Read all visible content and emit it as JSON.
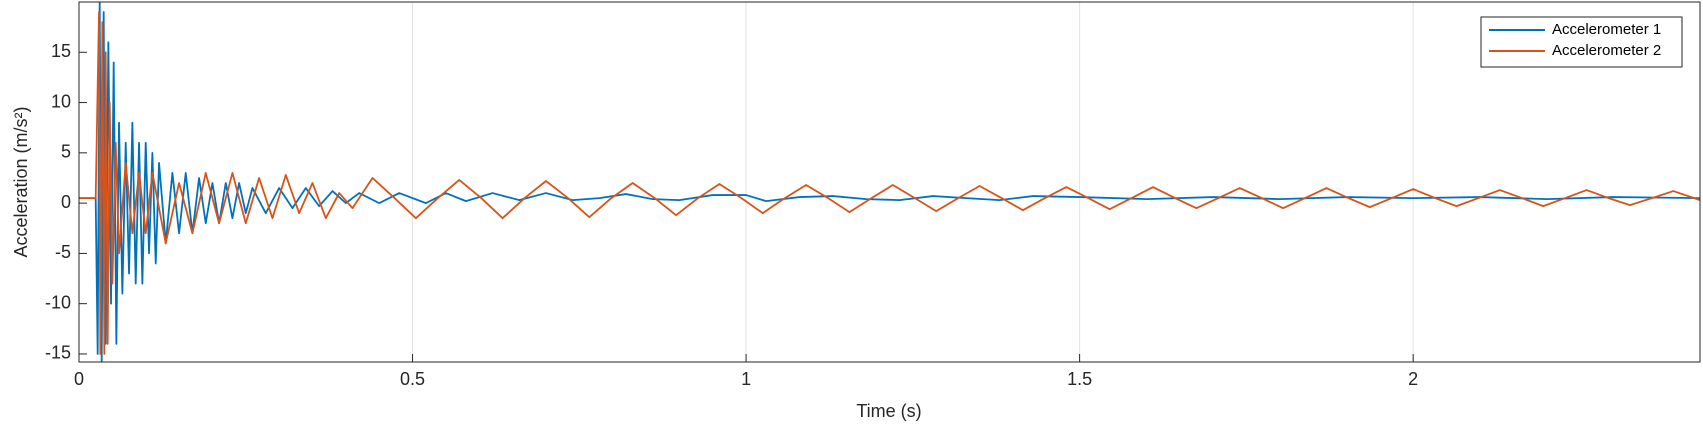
{
  "chart_data": {
    "type": "line",
    "x_label": "Time (s)",
    "y_label": "Acceleration (m/s²)",
    "xlim": [
      0,
      2.43
    ],
    "ylim": [
      -15.8,
      20
    ],
    "xticks": [
      0,
      0.5,
      1,
      1.5,
      2
    ],
    "yticks": [
      -15,
      -10,
      -5,
      0,
      5,
      10,
      15
    ],
    "grid": "x",
    "legend": "upper-right",
    "series": [
      {
        "name": "Accelerometer 1",
        "color": "#0072bd",
        "x": [
          0,
          0.025,
          0.028,
          0.031,
          0.034,
          0.037,
          0.04,
          0.044,
          0.048,
          0.052,
          0.056,
          0.06,
          0.065,
          0.07,
          0.075,
          0.08,
          0.085,
          0.09,
          0.095,
          0.1,
          0.105,
          0.11,
          0.115,
          0.12,
          0.13,
          0.14,
          0.15,
          0.16,
          0.17,
          0.18,
          0.19,
          0.2,
          0.21,
          0.22,
          0.23,
          0.24,
          0.25,
          0.26,
          0.28,
          0.3,
          0.32,
          0.34,
          0.36,
          0.38,
          0.4,
          0.42,
          0.45,
          0.48,
          0.52,
          0.55,
          0.58,
          0.62,
          0.66,
          0.7,
          0.74,
          0.78,
          0.82,
          0.86,
          0.9,
          0.95,
          1,
          1.03,
          1.08,
          1.13,
          1.18,
          1.23,
          1.28,
          1.33,
          1.38,
          1.43,
          1.5,
          1.6,
          1.7,
          1.8,
          1.9,
          2,
          2.1,
          2.2,
          2.3,
          2.43
        ],
        "values": [
          0.5,
          0.5,
          -15,
          20,
          -16,
          19,
          -14,
          16,
          -10,
          14,
          -14,
          8,
          -9,
          6,
          -7,
          8,
          -8,
          6,
          -8,
          6,
          -5,
          5,
          -6,
          4,
          -4,
          3,
          -3,
          3,
          -3,
          2.5,
          -2,
          2,
          -2,
          2,
          -1.5,
          2,
          -1,
          1.5,
          -1,
          1.5,
          -0.5,
          1.5,
          -0.3,
          1.2,
          0,
          1,
          0,
          1,
          0,
          1,
          0.2,
          1,
          0.3,
          1,
          0.3,
          0.5,
          0.9,
          0.4,
          0.3,
          0.8,
          0.8,
          0.2,
          0.6,
          0.7,
          0.4,
          0.3,
          0.7,
          0.5,
          0.3,
          0.7,
          0.6,
          0.4,
          0.6,
          0.4,
          0.6,
          0.5,
          0.6,
          0.4,
          0.6,
          0.5
        ]
      },
      {
        "name": "Accelerometer 2",
        "color": "#d95319",
        "x": [
          0,
          0.025,
          0.03,
          0.032,
          0.035,
          0.038,
          0.04,
          0.043,
          0.046,
          0.05,
          0.055,
          0.06,
          0.07,
          0.08,
          0.09,
          0.1,
          0.11,
          0.13,
          0.15,
          0.17,
          0.19,
          0.21,
          0.23,
          0.25,
          0.27,
          0.29,
          0.31,
          0.33,
          0.35,
          0.37,
          0.39,
          0.41,
          0.44,
          0.473,
          0.505,
          0.538,
          0.57,
          0.603,
          0.635,
          0.668,
          0.7,
          0.733,
          0.765,
          0.798,
          0.83,
          0.863,
          0.895,
          0.928,
          0.96,
          0.993,
          1.025,
          1.058,
          1.09,
          1.123,
          1.155,
          1.188,
          1.22,
          1.253,
          1.285,
          1.318,
          1.35,
          1.383,
          1.415,
          1.448,
          1.48,
          1.513,
          1.545,
          1.578,
          1.61,
          1.643,
          1.675,
          1.708,
          1.74,
          1.773,
          1.805,
          1.838,
          1.87,
          1.903,
          1.935,
          1.968,
          2,
          2.033,
          2.065,
          2.098,
          2.13,
          2.163,
          2.195,
          2.228,
          2.26,
          2.293,
          2.325,
          2.358,
          2.39,
          2.43
        ],
        "values": [
          0.5,
          0.5,
          19,
          -15,
          18,
          -15,
          15,
          -14,
          10,
          -8,
          6,
          -5,
          4,
          -3,
          3,
          -3,
          3,
          -4,
          2,
          -3,
          3,
          -2,
          3,
          -2,
          2.5,
          -1.5,
          2.8,
          -1,
          2,
          -1.5,
          1,
          -0.5,
          2.5,
          0.5,
          -1.5,
          0.5,
          2.3,
          0.5,
          -1.5,
          0.5,
          2.2,
          0.5,
          -1.4,
          0.5,
          2.0,
          0.5,
          -1.2,
          0.5,
          1.9,
          0.5,
          -1.0,
          0.5,
          1.8,
          0.5,
          -0.9,
          0.5,
          1.8,
          0.5,
          -0.8,
          0.5,
          1.7,
          0.5,
          -0.7,
          0.5,
          1.6,
          0.5,
          -0.6,
          0.5,
          1.6,
          0.5,
          -0.5,
          0.5,
          1.5,
          0.5,
          -0.5,
          0.5,
          1.5,
          0.5,
          -0.4,
          0.5,
          1.4,
          0.5,
          -0.3,
          0.5,
          1.3,
          0.5,
          -0.3,
          0.5,
          1.3,
          0.5,
          -0.2,
          0.5,
          1.2,
          0.3
        ]
      }
    ]
  }
}
